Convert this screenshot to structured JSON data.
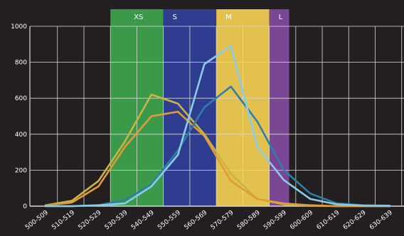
{
  "chart_data": {
    "type": "line",
    "title": "",
    "xlabel": "",
    "ylabel": "",
    "categories": [
      "500-509",
      "510-519",
      "520-529",
      "530-539",
      "540-549",
      "550-559",
      "560-569",
      "570-579",
      "580-589",
      "590-599",
      "600-609",
      "610-619",
      "620-629",
      "630-639"
    ],
    "ylim": [
      0,
      1000
    ],
    "yticks": [
      0,
      200,
      400,
      600,
      800,
      1000
    ],
    "grid": true,
    "bands": [
      {
        "label": "XS",
        "from": "530-539",
        "to": "540-549",
        "color": "#3a9a4a"
      },
      {
        "label": "S",
        "from": "550-559",
        "to": "560-569",
        "color": "#2e3d8f"
      },
      {
        "label": "M",
        "from": "570-579",
        "to": "580-589",
        "color": "#e2c14e"
      },
      {
        "label": "L",
        "from": "590-599",
        "to": "590-599",
        "color": "#7b4694"
      }
    ],
    "series": [
      {
        "color": "#c9b544",
        "values": [
          5,
          30,
          140,
          360,
          620,
          570,
          400,
          180,
          40,
          10,
          2,
          0,
          0,
          0
        ]
      },
      {
        "color": "#e09a3a",
        "values": [
          5,
          20,
          110,
          330,
          500,
          525,
          390,
          140,
          40,
          15,
          5,
          0,
          0,
          0
        ]
      },
      {
        "color": "#2d7ea8",
        "values": [
          0,
          0,
          5,
          35,
          120,
          310,
          550,
          665,
          470,
          200,
          70,
          15,
          5,
          3
        ]
      },
      {
        "color": "#8ccbe8",
        "values": [
          0,
          0,
          5,
          15,
          110,
          285,
          790,
          890,
          330,
          145,
          40,
          10,
          3,
          2
        ]
      }
    ]
  }
}
